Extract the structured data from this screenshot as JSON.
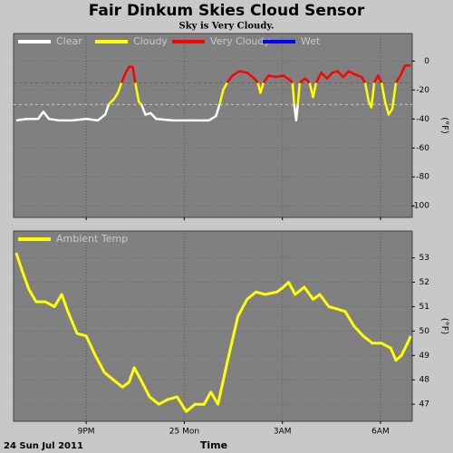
{
  "title": "Fair Dinkum Skies Cloud Sensor",
  "subtitle": "Sky is Very Cloudy.",
  "x_label": "Time",
  "date_label": "24 Sun Jul 2011",
  "chart_data": [
    {
      "type": "line",
      "y_label": "(°F)",
      "xlim": [
        18.78,
        30.97
      ],
      "xticks": [
        21,
        24,
        27,
        30
      ],
      "show_xtick_labels": false,
      "ylim": [
        -108,
        19
      ],
      "yticks": [
        0,
        -20,
        -40,
        -60,
        -80,
        -100
      ],
      "grid": true,
      "legend": "top-left",
      "thresholds": [
        {
          "value": -15,
          "color": "#e03030"
        },
        {
          "value": -30,
          "color": "#e0e000"
        }
      ],
      "x": [
        18.86,
        19.19,
        19.53,
        19.69,
        19.86,
        20.17,
        20.58,
        21.0,
        21.36,
        21.58,
        21.69,
        21.86,
        21.97,
        22.08,
        22.19,
        22.31,
        22.42,
        22.5,
        22.61,
        22.69,
        22.81,
        22.97,
        23.14,
        23.64,
        24.19,
        24.75,
        24.97,
        25.08,
        25.19,
        25.31,
        25.47,
        25.69,
        25.92,
        26.14,
        26.25,
        26.33,
        26.42,
        26.58,
        26.81,
        27.03,
        27.22,
        27.31,
        27.36,
        27.42,
        27.47,
        27.53,
        27.69,
        27.83,
        27.94,
        28.03,
        28.19,
        28.36,
        28.53,
        28.69,
        28.86,
        29.03,
        29.19,
        29.42,
        29.53,
        29.64,
        29.72,
        29.81,
        29.92,
        30.03,
        30.14,
        30.25,
        30.36,
        30.47,
        30.61,
        30.75,
        30.92
      ],
      "series": [
        {
          "name": "Clear",
          "color": "#ffffff",
          "values": [
            -41,
            -40,
            -40,
            -35,
            -40,
            -41,
            -41,
            -40,
            -41,
            -37,
            -30,
            null,
            null,
            null,
            null,
            null,
            null,
            null,
            null,
            -30,
            -37,
            -36,
            -40,
            -41,
            -41,
            -41,
            -38,
            -30,
            null,
            null,
            null,
            null,
            null,
            null,
            null,
            null,
            null,
            null,
            null,
            null,
            null,
            null,
            -30,
            -41,
            -30,
            null,
            null,
            null,
            null,
            null,
            null,
            null,
            null,
            null,
            null,
            null,
            null,
            null,
            null,
            null,
            null,
            null,
            null,
            null,
            null,
            null,
            null,
            null,
            null,
            null,
            null
          ]
        },
        {
          "name": "Cloudy",
          "color": "#ffff00",
          "values": [
            null,
            null,
            null,
            null,
            null,
            null,
            null,
            null,
            null,
            null,
            -30,
            -26,
            -22,
            -15,
            null,
            null,
            null,
            -15,
            -28,
            -30,
            null,
            null,
            null,
            null,
            null,
            null,
            null,
            -30,
            -20,
            -15,
            null,
            null,
            null,
            null,
            -15,
            -22,
            -15,
            null,
            null,
            null,
            null,
            -15,
            -30,
            null,
            -30,
            -15,
            null,
            -15,
            -25,
            -15,
            null,
            null,
            null,
            null,
            null,
            null,
            null,
            null,
            -15,
            -28,
            -32,
            -15,
            null,
            -15,
            -28,
            -37,
            -33,
            -15,
            null,
            null,
            null
          ]
        },
        {
          "name": "Very Cloudy",
          "color": "#ff0000",
          "values": [
            null,
            null,
            null,
            null,
            null,
            null,
            null,
            null,
            null,
            null,
            null,
            null,
            null,
            -15,
            -9,
            -4,
            -4,
            -15,
            null,
            null,
            null,
            null,
            null,
            null,
            null,
            null,
            null,
            null,
            null,
            -15,
            -10,
            -7,
            -8,
            -12,
            -15,
            null,
            -15,
            -10,
            -11,
            -10,
            -13,
            -15,
            null,
            null,
            null,
            -15,
            -12,
            -15,
            null,
            -15,
            -8,
            -12,
            -8,
            -7,
            -11,
            -7,
            -9,
            -11,
            -15,
            null,
            null,
            -15,
            -10,
            -15,
            null,
            null,
            null,
            -15,
            -10,
            -3,
            -3
          ]
        },
        {
          "name": "Wet",
          "color": "#0000ff",
          "values": [
            null,
            null,
            null,
            null,
            null,
            null,
            null,
            null,
            null,
            null,
            null,
            null,
            null,
            null,
            null,
            null,
            null,
            null,
            null,
            null,
            null,
            null,
            null,
            null,
            null,
            null,
            null,
            null,
            null,
            null,
            null,
            null,
            null,
            null,
            null,
            null,
            null,
            null,
            null,
            null,
            null,
            null,
            null,
            null,
            null,
            null,
            null,
            null,
            null,
            null,
            null,
            null,
            null,
            null,
            null,
            null,
            null,
            null,
            null,
            null,
            null,
            null,
            null,
            null,
            null,
            null,
            null,
            null,
            null,
            null,
            null
          ]
        }
      ]
    },
    {
      "type": "line",
      "y_label": "(°F)",
      "xlim": [
        18.78,
        30.97
      ],
      "xticks": [
        {
          "value": 21,
          "label": "9PM"
        },
        {
          "value": 24,
          "label": "25 Mon"
        },
        {
          "value": 27,
          "label": "3AM"
        },
        {
          "value": 30,
          "label": "6AM"
        }
      ],
      "show_xtick_labels": true,
      "ylim": [
        46.3,
        54.1
      ],
      "yticks": [
        53,
        52,
        51,
        50,
        49,
        48,
        47
      ],
      "grid": true,
      "legend": "top-left",
      "x": [
        18.86,
        19.06,
        19.25,
        19.47,
        19.75,
        20.03,
        20.25,
        20.44,
        20.72,
        21.0,
        21.28,
        21.56,
        21.83,
        22.11,
        22.31,
        22.47,
        22.67,
        22.94,
        23.22,
        23.5,
        23.78,
        24.06,
        24.33,
        24.61,
        24.81,
        25.03,
        25.31,
        25.64,
        25.92,
        26.19,
        26.47,
        26.83,
        27.03,
        27.19,
        27.39,
        27.67,
        27.94,
        28.14,
        28.42,
        28.69,
        28.92,
        29.19,
        29.47,
        29.75,
        30.03,
        30.31,
        30.47,
        30.64,
        30.86,
        30.92
      ],
      "series": [
        {
          "name": "Ambient Temp",
          "color": "#ffff00",
          "values": [
            53.2,
            52.4,
            51.7,
            51.2,
            51.2,
            51.0,
            51.5,
            50.8,
            49.9,
            49.8,
            49.0,
            48.3,
            48.0,
            47.7,
            47.9,
            48.5,
            48.0,
            47.3,
            47.0,
            47.2,
            47.3,
            46.7,
            47.0,
            47.0,
            47.5,
            47.0,
            48.7,
            50.6,
            51.3,
            51.6,
            51.5,
            51.6,
            51.8,
            52.0,
            51.5,
            51.8,
            51.3,
            51.5,
            51.0,
            50.9,
            50.8,
            50.2,
            49.8,
            49.5,
            49.5,
            49.3,
            48.8,
            49.0,
            49.6,
            49.8
          ]
        }
      ]
    }
  ]
}
